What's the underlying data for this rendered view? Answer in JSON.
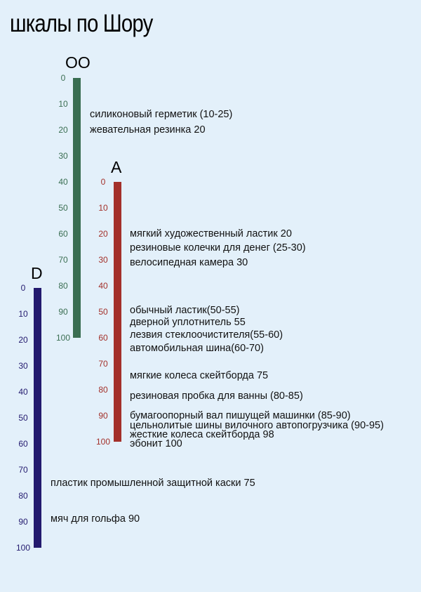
{
  "title": "шкалы по Шору",
  "scales": [
    {
      "name": "OO",
      "color": "#3a6e52",
      "ticks": [
        "0",
        "10",
        "20",
        "30",
        "40",
        "50",
        "60",
        "70",
        "80",
        "90",
        "100"
      ],
      "items": [
        {
          "text": "силиконовый герметик (10-25)",
          "value": 14
        },
        {
          "text": "жевательная резинка 20",
          "value": 20
        }
      ]
    },
    {
      "name": "A",
      "color": "#a3302a",
      "ticks": [
        "0",
        "10",
        "20",
        "30",
        "40",
        "50",
        "60",
        "70",
        "80",
        "90",
        "100"
      ],
      "items": [
        {
          "text": "мягкий художественный ластик 20",
          "value": 20
        },
        {
          "text": "резиновые колечки для денег (25-30)",
          "value": 25.5
        },
        {
          "text": "велосипедная камера 30",
          "value": 31
        },
        {
          "text": "обычный ластик(50-55)",
          "value": 49.5
        },
        {
          "text": "дверной уплотнитель 55",
          "value": 54
        },
        {
          "text": "лезвия стеклоочистителя(55-60)",
          "value": 59
        },
        {
          "text": "автомобильная шина(60-70)",
          "value": 64
        },
        {
          "text": "мягкие колеса скейтборда 75",
          "value": 74.5
        },
        {
          "text": "резиновая пробка для ванны (80-85)",
          "value": 82.5
        },
        {
          "text": "бумагоопорный вал пишущей машинки (85-90)",
          "value": 90
        },
        {
          "text": "цельнолитые шины вилочного автопогрузчика (90-95)",
          "value": 93.8
        },
        {
          "text": "жесткие колеса скейтборда 98",
          "value": 97.3
        },
        {
          "text": "эбонит 100",
          "value": 100.8
        }
      ]
    },
    {
      "name": "D",
      "color": "#231a6e",
      "ticks": [
        "0",
        "10",
        "20",
        "30",
        "40",
        "50",
        "60",
        "70",
        "80",
        "90",
        "100"
      ],
      "items": [
        {
          "text": "пластик промышленной защитной каски 75",
          "value": 75
        },
        {
          "text": "мяч для гольфа 90",
          "value": 89
        }
      ]
    }
  ]
}
